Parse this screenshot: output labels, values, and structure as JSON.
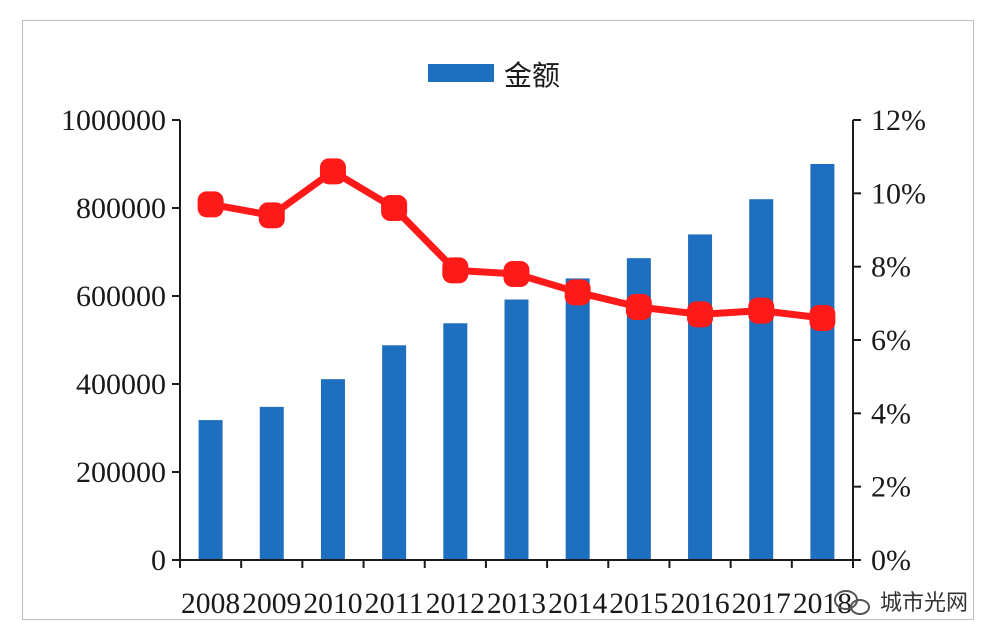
{
  "chart_data": {
    "type": "bar",
    "categories": [
      "2008",
      "2009",
      "2010",
      "2011",
      "2012",
      "2013",
      "2014",
      "2015",
      "2016",
      "2017",
      "2018"
    ],
    "series": [
      {
        "name": "金额",
        "type": "bar",
        "axis": "left",
        "color": "#1f6fc0",
        "values": [
          318000,
          348000,
          411000,
          488000,
          538000,
          592000,
          640000,
          686000,
          740000,
          820000,
          900000
        ]
      },
      {
        "type": "line",
        "axis": "right",
        "color": "#ff1a1a",
        "values": [
          9.7,
          9.4,
          10.6,
          9.6,
          7.9,
          7.8,
          7.3,
          6.9,
          6.7,
          6.8,
          6.6
        ]
      }
    ],
    "y_left": {
      "min": 0,
      "max": 1000000,
      "ticks": [
        "0",
        "200000",
        "400000",
        "600000",
        "800000",
        "1000000"
      ]
    },
    "y_right": {
      "min": 0,
      "max": 12,
      "ticks": [
        "0%",
        "2%",
        "4%",
        "6%",
        "8%",
        "10%",
        "12%"
      ]
    },
    "legend": {
      "placement": "top-center",
      "label": "金额"
    },
    "grid": false
  },
  "watermark": {
    "text": "城市光网"
  },
  "colors": {
    "bar": "#1f6fc0",
    "line": "#ff1a1a",
    "axis": "#1a1a1a"
  }
}
